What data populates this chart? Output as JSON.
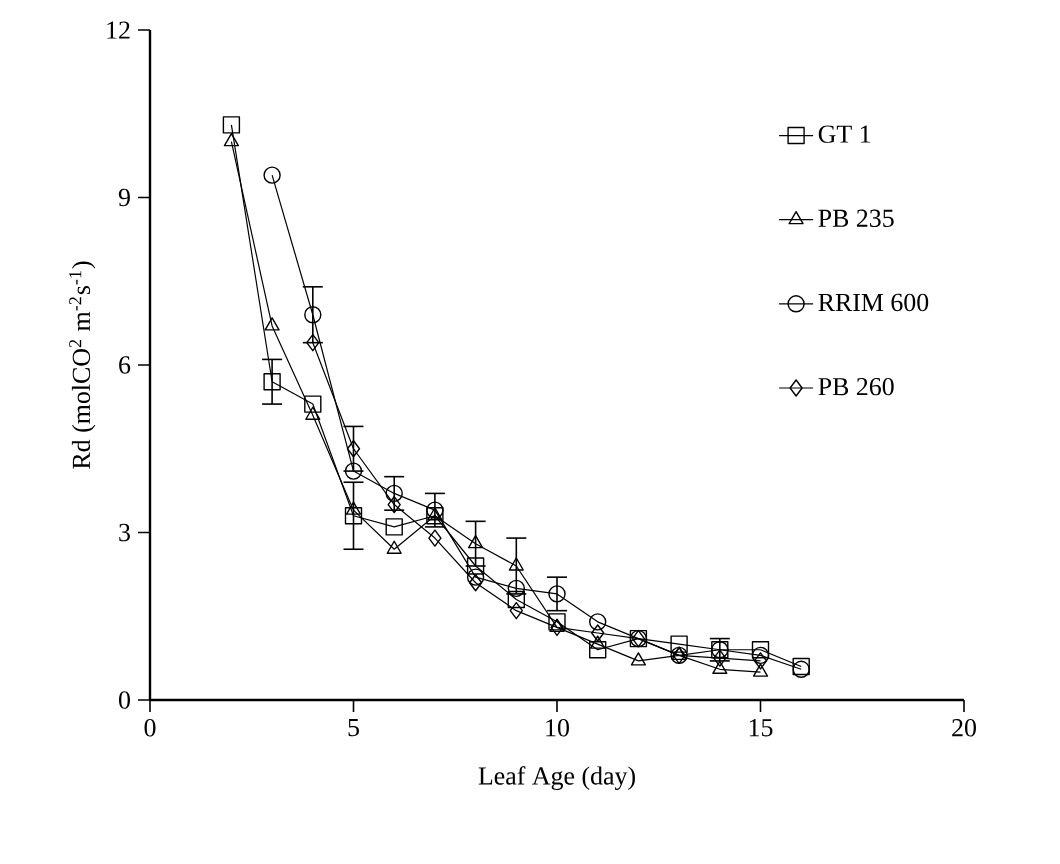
{
  "chart_data": {
    "type": "line",
    "xlabel": "Leaf Age (day)",
    "ylabel": "Rd (molCO$^{2}$ m$^{-2}$s$^{-1}$)",
    "xlim": [
      0,
      20
    ],
    "xticks": [
      0,
      5,
      10,
      15,
      20
    ],
    "ylim": [
      0,
      12
    ],
    "yticks": [
      0,
      3,
      6,
      9,
      12
    ],
    "legend": "right",
    "grid": false,
    "line_style": "solid",
    "series": [
      {
        "name": "GT 1",
        "color": "#000000",
        "marker": "square",
        "x": [
          2,
          3,
          4,
          5,
          6,
          7,
          8,
          9,
          10,
          11,
          12,
          13,
          14,
          15,
          16
        ],
        "values": [
          10.3,
          5.7,
          5.3,
          3.3,
          3.1,
          3.3,
          2.4,
          1.8,
          1.4,
          0.9,
          1.1,
          1.0,
          0.9,
          0.9,
          0.6
        ],
        "errors": [
          null,
          0.4,
          null,
          0.6,
          null,
          null,
          null,
          null,
          null,
          null,
          null,
          null,
          null,
          null,
          null
        ]
      },
      {
        "name": "PB 235",
        "color": "#000000",
        "marker": "triangle",
        "x": [
          2,
          3,
          4,
          5,
          6,
          7,
          8,
          9,
          10,
          11,
          12,
          13,
          14,
          15
        ],
        "values": [
          10.0,
          6.7,
          5.1,
          3.4,
          2.7,
          3.3,
          2.8,
          2.4,
          1.3,
          1.0,
          0.7,
          0.8,
          0.55,
          0.5
        ],
        "errors": [
          null,
          null,
          null,
          null,
          null,
          null,
          0.4,
          0.5,
          null,
          null,
          null,
          null,
          null,
          null
        ]
      },
      {
        "name": "RRIM 600",
        "color": "#000000",
        "marker": "circle",
        "x": [
          3,
          4,
          5,
          6,
          7,
          8,
          9,
          10,
          11,
          12,
          13,
          14,
          15,
          16
        ],
        "values": [
          9.4,
          6.9,
          4.1,
          3.7,
          3.4,
          2.2,
          2.0,
          1.9,
          1.4,
          1.1,
          0.8,
          0.9,
          0.8,
          0.55
        ],
        "errors": [
          null,
          0.5,
          null,
          0.3,
          0.3,
          null,
          null,
          0.3,
          null,
          null,
          null,
          0.2,
          null,
          null
        ]
      },
      {
        "name": "PB 260",
        "color": "#000000",
        "marker": "diamond",
        "x": [
          4,
          5,
          6,
          7,
          8,
          9,
          10,
          11,
          12,
          13,
          14,
          15
        ],
        "values": [
          6.4,
          4.5,
          3.5,
          2.9,
          2.1,
          1.6,
          1.3,
          1.2,
          1.1,
          0.8,
          0.75,
          0.7
        ],
        "errors": [
          null,
          0.4,
          null,
          null,
          null,
          null,
          null,
          null,
          null,
          null,
          null,
          null
        ]
      }
    ]
  }
}
